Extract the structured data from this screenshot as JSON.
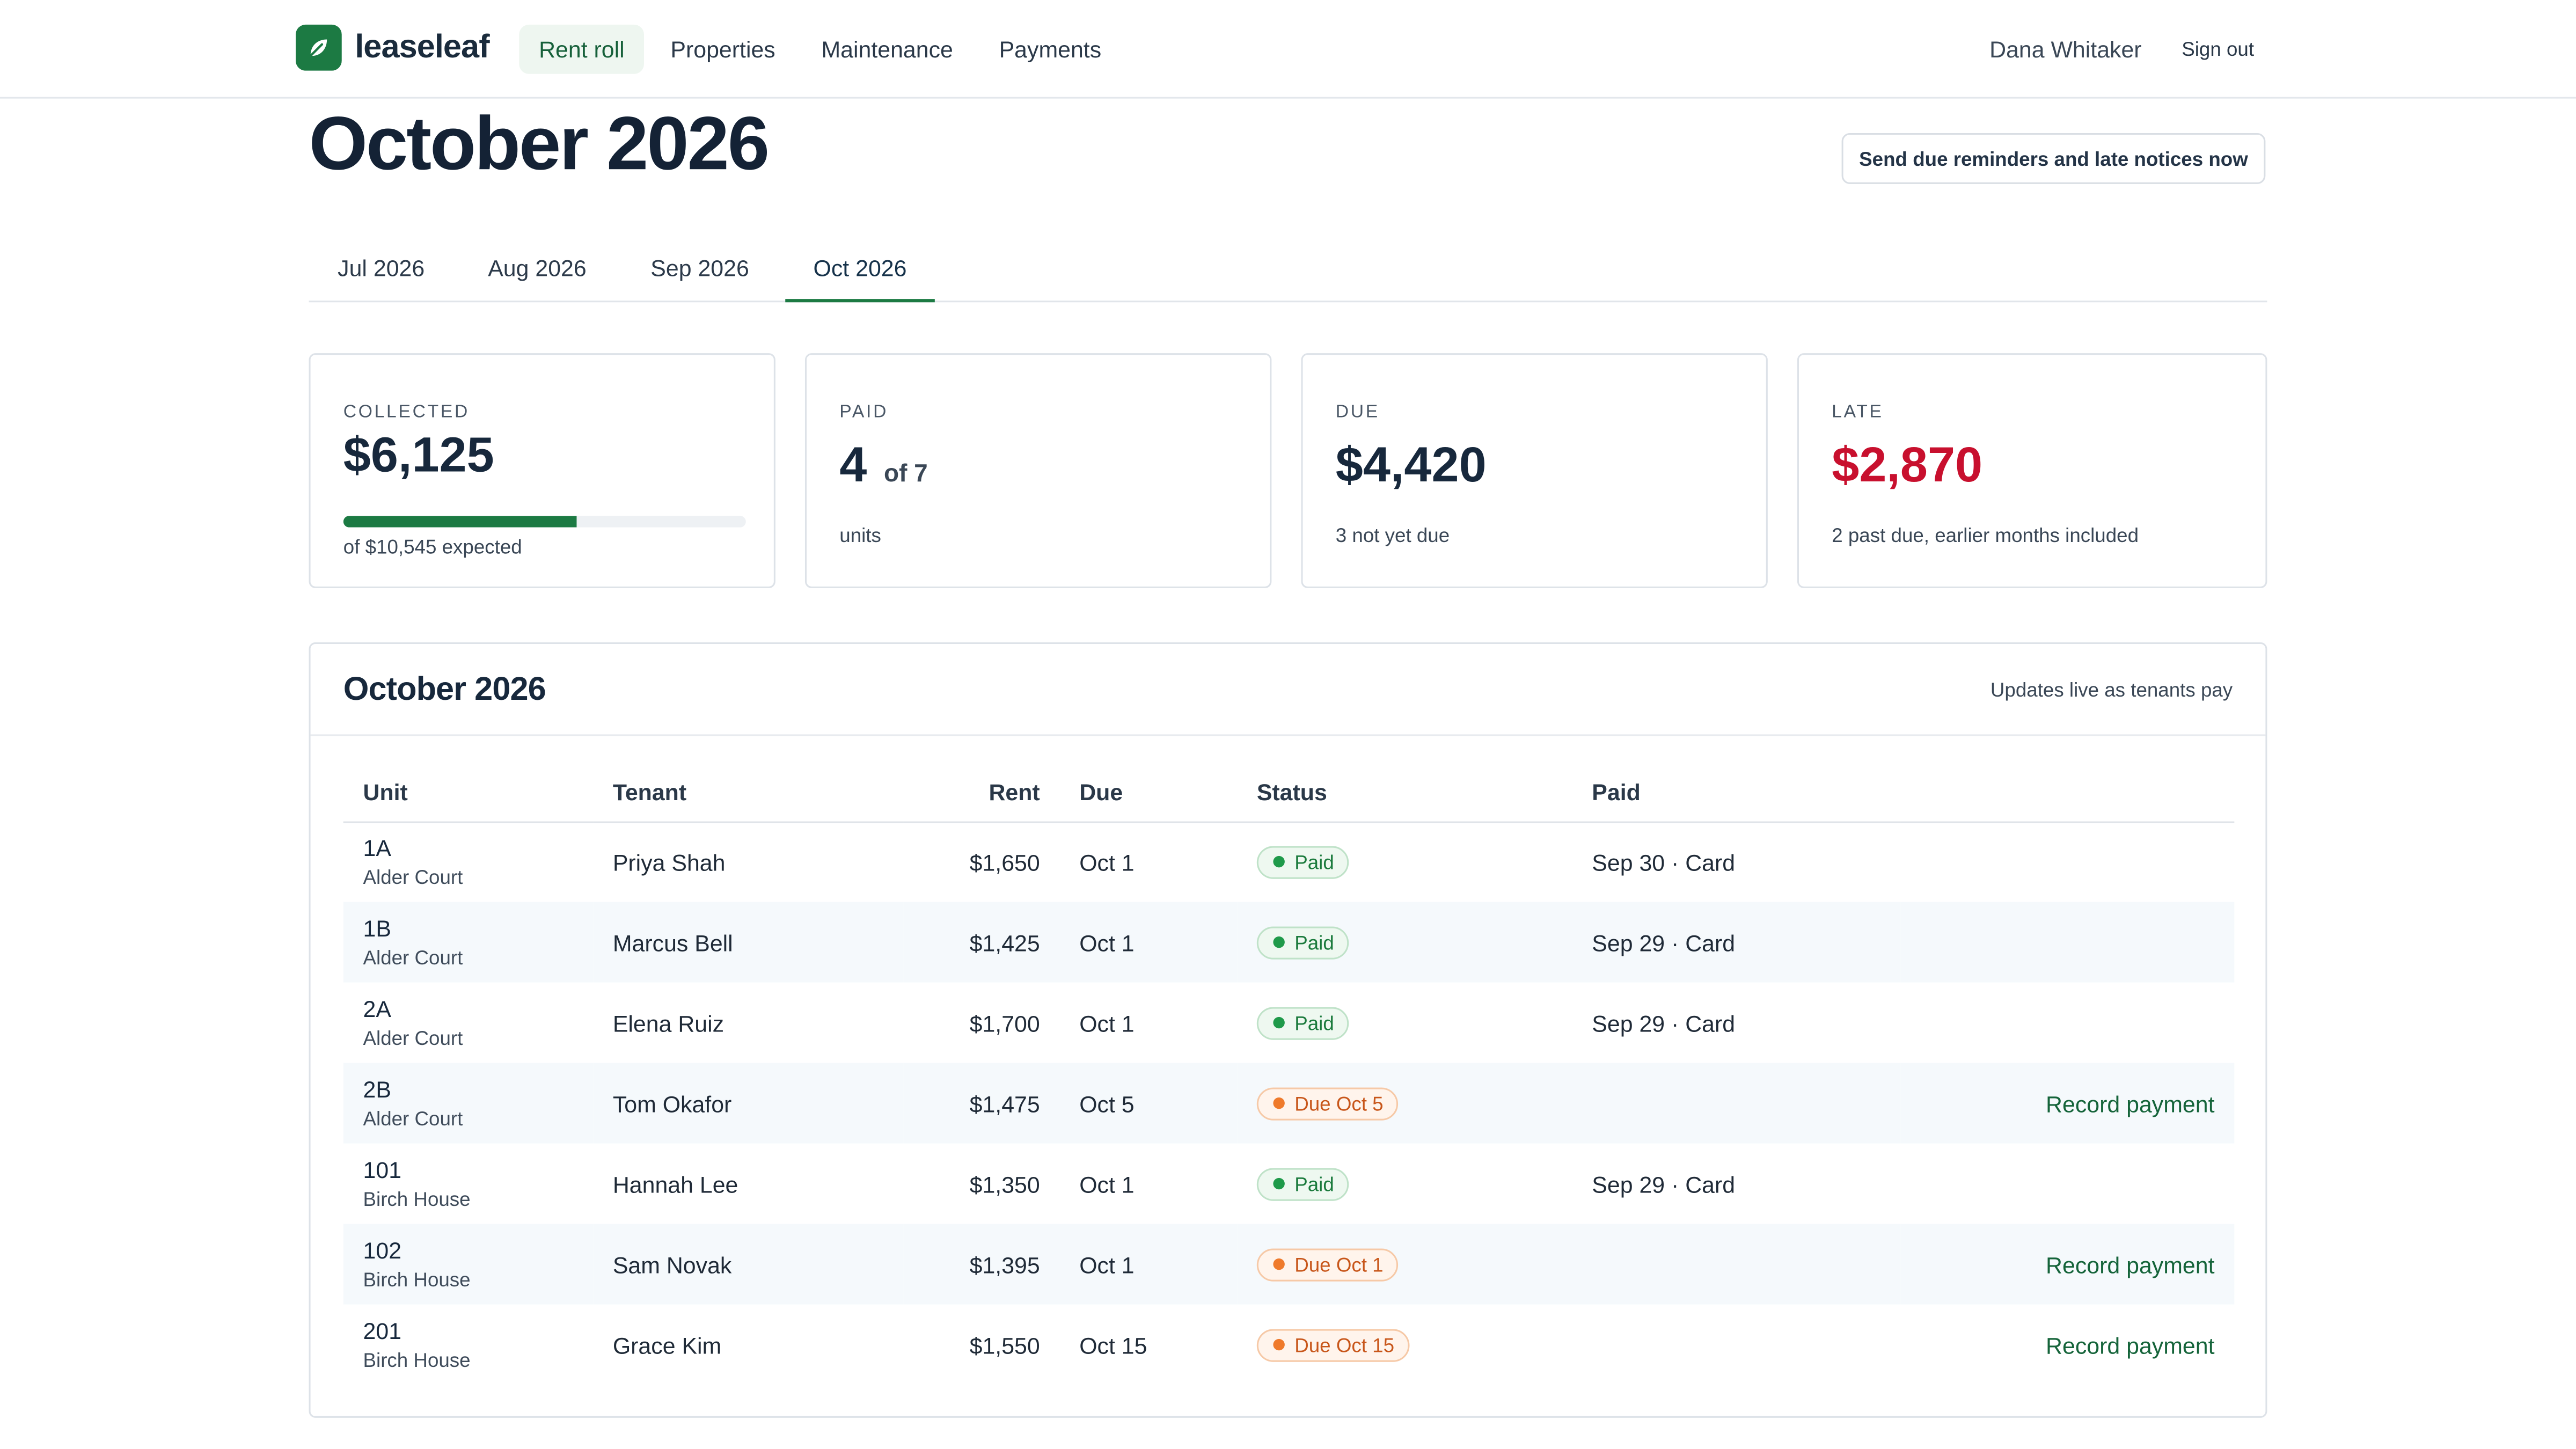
{
  "app": {
    "brand": "leaseleaf",
    "logo_icon": "leaf-icon",
    "accent_color": "#1c7a43",
    "late_color": "#c8102e"
  },
  "nav": {
    "items": [
      {
        "label": "Rent roll",
        "active": true
      },
      {
        "label": "Properties",
        "active": false
      },
      {
        "label": "Maintenance",
        "active": false
      },
      {
        "label": "Payments",
        "active": false
      }
    ],
    "user_name": "Dana Whitaker",
    "sign_out": "Sign out"
  },
  "page": {
    "title": "October 2026",
    "primary_action": "Send due reminders and late notices now"
  },
  "tabs": [
    {
      "label": "Jul 2026",
      "active": false
    },
    {
      "label": "Aug 2026",
      "active": false
    },
    {
      "label": "Sep 2026",
      "active": false
    },
    {
      "label": "Oct 2026",
      "active": true
    }
  ],
  "summary": {
    "collected": {
      "label": "COLLECTED",
      "value": "$6,125",
      "sub": "of $10,545 expected",
      "progress_fraction": 0.581
    },
    "paid": {
      "label": "PAID",
      "value": "4",
      "of": "of 7",
      "sub": "units"
    },
    "due": {
      "label": "DUE",
      "value": "$4,420",
      "sub": "3 not yet due"
    },
    "late": {
      "label": "LATE",
      "value": "$2,870",
      "sub": "2 past due, earlier months included"
    }
  },
  "roll": {
    "title": "October 2026",
    "note": "Updates live as tenants pay",
    "columns": [
      "Unit",
      "Tenant",
      "Rent",
      "Due",
      "Status",
      "Paid"
    ],
    "rows": [
      {
        "unit": "1A",
        "property": "Alder Court",
        "tenant": "Priya Shah",
        "rent": "$1,650",
        "due": "Oct 1",
        "status": "Paid",
        "status_kind": "paid",
        "paid": "Sep 30 · Card",
        "action": ""
      },
      {
        "unit": "1B",
        "property": "Alder Court",
        "tenant": "Marcus Bell",
        "rent": "$1,425",
        "due": "Oct 1",
        "status": "Paid",
        "status_kind": "paid",
        "paid": "Sep 29 · Card",
        "action": ""
      },
      {
        "unit": "2A",
        "property": "Alder Court",
        "tenant": "Elena Ruiz",
        "rent": "$1,700",
        "due": "Oct 1",
        "status": "Paid",
        "status_kind": "paid",
        "paid": "Sep 29 · Card",
        "action": ""
      },
      {
        "unit": "2B",
        "property": "Alder Court",
        "tenant": "Tom Okafor",
        "rent": "$1,475",
        "due": "Oct 5",
        "status": "Due Oct 5",
        "status_kind": "due",
        "paid": "",
        "action": "Record payment"
      },
      {
        "unit": "101",
        "property": "Birch House",
        "tenant": "Hannah Lee",
        "rent": "$1,350",
        "due": "Oct 1",
        "status": "Paid",
        "status_kind": "paid",
        "paid": "Sep 29 · Card",
        "action": ""
      },
      {
        "unit": "102",
        "property": "Birch House",
        "tenant": "Sam Novak",
        "rent": "$1,395",
        "due": "Oct 1",
        "status": "Due Oct 1",
        "status_kind": "due",
        "paid": "",
        "action": "Record payment"
      },
      {
        "unit": "201",
        "property": "Birch House",
        "tenant": "Grace Kim",
        "rent": "$1,550",
        "due": "Oct 15",
        "status": "Due Oct 15",
        "status_kind": "due",
        "paid": "",
        "action": "Record payment"
      }
    ]
  }
}
